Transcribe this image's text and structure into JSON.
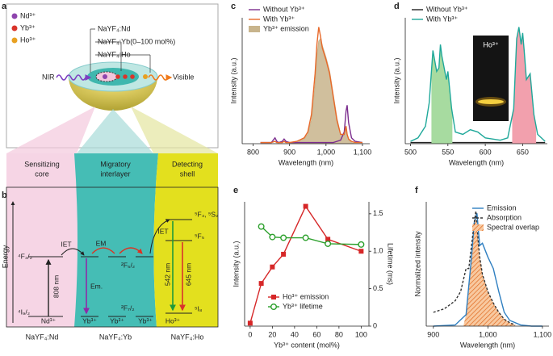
{
  "panel_a": {
    "label": "a",
    "legend": [
      "Nd³⁺",
      "Yb³⁺",
      "Ho³⁺"
    ],
    "layers": [
      "NaYF₄:Nd",
      "NaYF₄:Yb(0–100 mol%)",
      "NaYF₄:Ho"
    ],
    "input": "NIR",
    "output": "Visible"
  },
  "panel_b": {
    "label": "b",
    "axis": "Energy",
    "headers": [
      [
        "Sensitizing",
        "core"
      ],
      [
        "Migratory",
        "interlayer"
      ],
      [
        "Detecting",
        "shell"
      ]
    ],
    "levels": {
      "nd_upper": "⁴F₃/₂",
      "nd_lower": "⁴I₉/₂",
      "yb_upper": "²F₅/₂",
      "yb_lower": "²F₇/₂",
      "ho_upper": "⁵F₄, ⁵S₂",
      "ho_mid": "⁵F₅",
      "ho_lower": "⁵I₈"
    },
    "transitions": {
      "excitation": "808 nm",
      "transfer_1": "IET",
      "migration": "EM",
      "emission_yb": "Em.",
      "transfer_2": "IET",
      "green": "542 nm",
      "red": "645 nm"
    },
    "ions": [
      "Nd³⁺",
      "Yb³⁺",
      "Yb³⁺",
      "Yb³⁺",
      "Ho³⁺"
    ],
    "compositions": [
      "NaYF₄:Nd",
      "NaYF₄:Yb",
      "NaYF₄:Ho"
    ]
  },
  "chart_data": [
    {
      "type": "line",
      "panel": "c",
      "xlabel": "Wavelength (nm)",
      "ylabel": "Intensity (a.u.)",
      "xlim": [
        770,
        1120
      ],
      "ylim": [
        0,
        1.08
      ],
      "xticks": [
        800,
        900,
        {
          "value": 1000,
          "label": "1,000"
        },
        {
          "value": 1100,
          "label": "1,100"
        }
      ],
      "legend": "upper left",
      "series": [
        {
          "name": "Without Yb³⁺",
          "color": "#7b2d8e",
          "x": [
            820,
            850,
            860,
            865,
            870,
            880,
            885,
            890,
            900,
            920,
            940,
            950,
            960,
            970,
            975,
            980,
            985,
            990,
            1000,
            1010,
            1020,
            1030,
            1040,
            1050,
            1055,
            1058,
            1062,
            1070,
            1080,
            1100
          ],
          "values": [
            0.01,
            0.01,
            0.05,
            0.02,
            0.01,
            0.02,
            0.04,
            0.02,
            0.01,
            0.01,
            0.01,
            0.01,
            0.01,
            0.01,
            0.01,
            0.01,
            0.01,
            0.01,
            0.01,
            0.01,
            0.01,
            0.02,
            0.03,
            0.1,
            0.28,
            0.33,
            0.18,
            0.05,
            0.02,
            0.01
          ]
        },
        {
          "name": "With Yb³⁺",
          "color": "#e8692a",
          "x": [
            820,
            850,
            860,
            865,
            870,
            880,
            885,
            890,
            900,
            920,
            940,
            950,
            960,
            970,
            975,
            980,
            985,
            990,
            1000,
            1010,
            1020,
            1030,
            1040,
            1050,
            1055,
            1058,
            1062,
            1070,
            1080,
            1100
          ],
          "values": [
            0.01,
            0.01,
            0.02,
            0.01,
            0.01,
            0.01,
            0.02,
            0.01,
            0.01,
            0.02,
            0.05,
            0.1,
            0.25,
            0.6,
            0.85,
            1.0,
            0.92,
            0.82,
            0.72,
            0.6,
            0.4,
            0.2,
            0.08,
            0.08,
            0.15,
            0.08,
            0.04,
            0.02,
            0.01,
            0.01
          ]
        },
        {
          "name": "Yb³⁺ emission",
          "color": "#c8b48c",
          "fill": true,
          "x": [
            820,
            850,
            860,
            865,
            870,
            880,
            885,
            890,
            900,
            920,
            940,
            950,
            960,
            970,
            975,
            980,
            985,
            990,
            1000,
            1010,
            1020,
            1030,
            1040,
            1050,
            1055,
            1058,
            1062,
            1070,
            1080,
            1100
          ],
          "values": [
            0,
            0,
            0,
            0,
            0,
            0,
            0,
            0,
            0,
            0.01,
            0.04,
            0.08,
            0.2,
            0.5,
            0.75,
            0.88,
            0.9,
            0.84,
            0.74,
            0.62,
            0.42,
            0.22,
            0.08,
            0.07,
            0.14,
            0.08,
            0.03,
            0.01,
            0,
            0
          ]
        }
      ]
    },
    {
      "type": "line",
      "panel": "d",
      "xlabel": "Wavelength (nm)",
      "ylabel": "Intensity (a.u.)",
      "xlim": [
        493,
        683
      ],
      "ylim": [
        0,
        1.08
      ],
      "xticks": [
        500,
        550,
        600,
        650
      ],
      "legend": "upper left",
      "inset_label": "Ho³⁺",
      "series": [
        {
          "name": "Without Yb³⁺",
          "color": "#222222",
          "x": [
            500,
            680
          ],
          "values": [
            0.01,
            0.01
          ]
        },
        {
          "name": "With Yb³⁺",
          "color": "#1fa89a",
          "x": [
            500,
            510,
            520,
            525,
            530,
            535,
            538,
            540,
            542,
            545,
            548,
            550,
            555,
            560,
            570,
            580,
            590,
            600,
            620,
            630,
            638,
            642,
            645,
            648,
            650,
            652,
            655,
            660,
            665,
            670,
            680
          ],
          "values": [
            0.02,
            0.05,
            0.15,
            0.35,
            0.8,
            0.62,
            0.65,
            0.85,
            0.75,
            0.65,
            0.55,
            0.62,
            0.3,
            0.1,
            0.08,
            0.12,
            0.1,
            0.05,
            0.03,
            0.05,
            0.3,
            0.9,
            1.0,
            0.85,
            0.95,
            0.8,
            0.55,
            0.6,
            0.25,
            0.08,
            0.02
          ],
          "highlight": [
            {
              "xrange": [
                528,
                556
              ],
              "color": "#a7dba0"
            },
            {
              "xrange": [
                636,
                668
              ],
              "color": "#f2a0ad"
            }
          ]
        }
      ]
    },
    {
      "type": "line",
      "panel": "e",
      "xlabel": "Yb³⁺ content (mol%)",
      "ylabel": "Intensity (a.u.)",
      "y2label": "Lifetime (ms)",
      "xlim": [
        -5,
        107
      ],
      "ylim": [
        0,
        1.66
      ],
      "y2lim": [
        0,
        1.66
      ],
      "xticks": [
        0,
        20,
        40,
        60,
        80,
        100
      ],
      "y2ticks": [
        0,
        0.5,
        {
          "value": 1,
          "label": "1.0"
        },
        1.5
      ],
      "legend": "lower right",
      "series": [
        {
          "name": "Ho³⁺ emission",
          "color": "#d62728",
          "marker": "square",
          "x": [
            0,
            10,
            20,
            30,
            50,
            70,
            100
          ],
          "values": [
            0.04,
            0.57,
            0.79,
            0.96,
            1.6,
            1.16,
            1.0
          ]
        },
        {
          "name": "Yb³⁺ lifetime",
          "color": "#2ca02c",
          "marker": "circle",
          "axis": "y2",
          "x": [
            10,
            20,
            30,
            50,
            70,
            100
          ],
          "values": [
            1.33,
            1.19,
            1.18,
            1.18,
            1.1,
            1.09
          ]
        }
      ]
    },
    {
      "type": "line",
      "panel": "f",
      "xlabel": "Wavelength (nm)",
      "ylabel": "Normalized intensity",
      "xlim": [
        887,
        1112
      ],
      "ylim": [
        0,
        1.08
      ],
      "xticks": [
        900,
        {
          "value": 1000,
          "label": "1,000"
        },
        {
          "value": 1100,
          "label": "1,100"
        }
      ],
      "legend": "upper right",
      "series": [
        {
          "name": "Emission",
          "color": "#2f7fc1",
          "x": [
            900,
            940,
            960,
            970,
            975,
            980,
            985,
            990,
            1000,
            1010,
            1020,
            1030,
            1040,
            1060,
            1080,
            1100
          ],
          "values": [
            0,
            0.01,
            0.1,
            0.6,
            0.9,
            0.98,
            0.7,
            0.72,
            0.6,
            0.5,
            0.3,
            0.12,
            0.05,
            0.01,
            0,
            0
          ]
        },
        {
          "name": "Absorption",
          "color": "#333333",
          "dash": true,
          "x": [
            900,
            920,
            940,
            950,
            960,
            965,
            970,
            975,
            978,
            982,
            985,
            990,
            1000,
            1010,
            1020,
            1030,
            1040,
            1050
          ],
          "values": [
            0.12,
            0.15,
            0.22,
            0.3,
            0.5,
            0.5,
            0.7,
            0.9,
            1.0,
            0.75,
            0.6,
            0.45,
            0.3,
            0.2,
            0.12,
            0.06,
            0.03,
            0.01
          ]
        },
        {
          "name": "Spectral overlap",
          "color": "#f08a3c",
          "fill": true,
          "hatch": true,
          "x": [
            955,
            960,
            965,
            970,
            975,
            978,
            982,
            985,
            990,
            1000,
            1010,
            1020,
            1030,
            1040,
            1050
          ],
          "values": [
            0,
            0.1,
            0.3,
            0.6,
            0.9,
            0.96,
            0.75,
            0.6,
            0.45,
            0.3,
            0.2,
            0.12,
            0.06,
            0.03,
            0.01
          ]
        }
      ]
    }
  ]
}
